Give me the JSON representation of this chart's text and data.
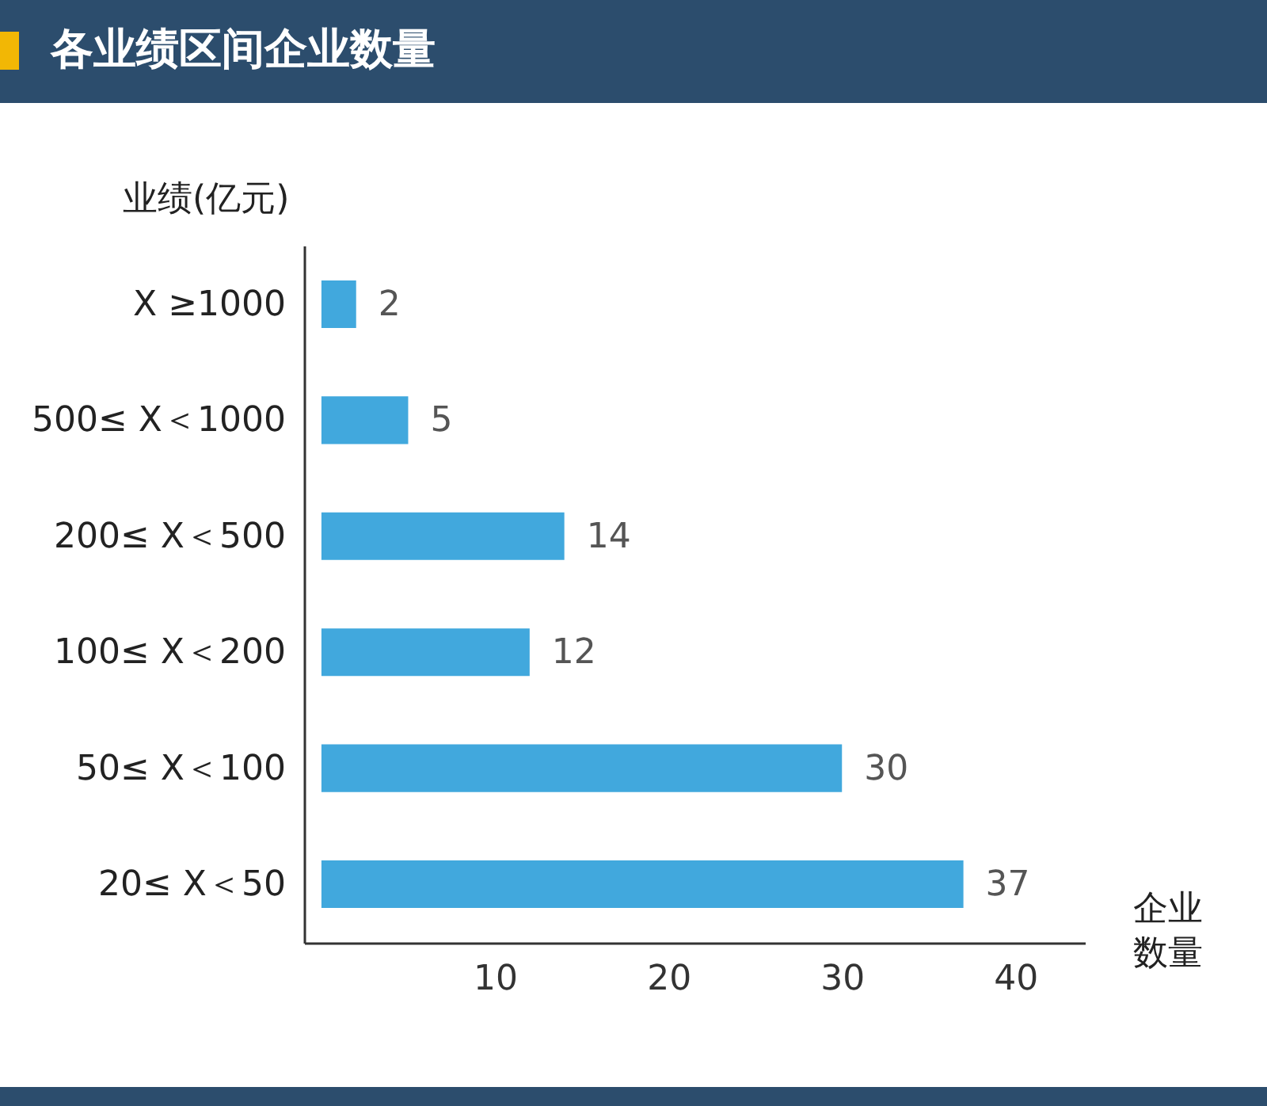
{
  "chart_data": {
    "type": "bar",
    "orientation": "horizontal",
    "title": "各业绩区间企业数量",
    "ylabel": "业绩(亿元)",
    "xlabel": "企业数量",
    "categories": [
      "X ≥1000",
      "500≤ X＜1000",
      "200≤ X＜500",
      "100≤ X＜200",
      "50≤ X＜100",
      "20≤ X＜50"
    ],
    "values": [
      2,
      5,
      14,
      12,
      30,
      37
    ],
    "color": "#41a8dd",
    "xlim": [
      -1,
      44
    ],
    "xticks": [
      10,
      20,
      30,
      40
    ],
    "grid": false,
    "data_labels": true
  }
}
